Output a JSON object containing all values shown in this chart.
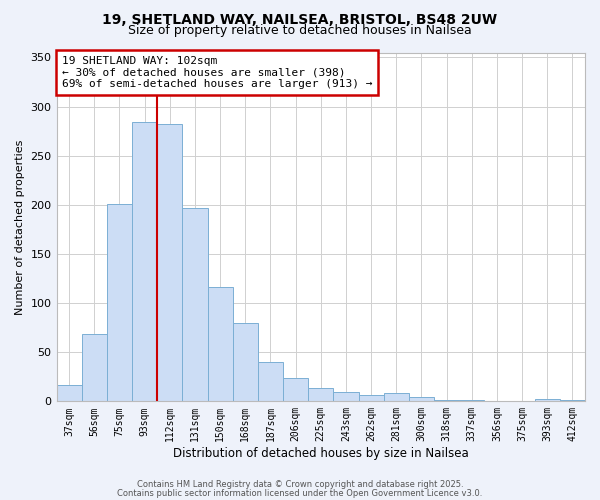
{
  "title_line1": "19, SHETLAND WAY, NAILSEA, BRISTOL, BS48 2UW",
  "title_line2": "Size of property relative to detached houses in Nailsea",
  "xlabel": "Distribution of detached houses by size in Nailsea",
  "ylabel": "Number of detached properties",
  "categories": [
    "37sqm",
    "56sqm",
    "75sqm",
    "93sqm",
    "112sqm",
    "131sqm",
    "150sqm",
    "168sqm",
    "187sqm",
    "206sqm",
    "225sqm",
    "243sqm",
    "262sqm",
    "281sqm",
    "300sqm",
    "318sqm",
    "337sqm",
    "356sqm",
    "375sqm",
    "393sqm",
    "412sqm"
  ],
  "values": [
    17,
    69,
    201,
    284,
    282,
    197,
    116,
    80,
    40,
    24,
    14,
    10,
    6,
    8,
    4,
    1,
    1,
    0,
    0,
    2,
    1
  ],
  "bar_color": "#ccddf5",
  "bar_edge_color": "#7bafd4",
  "vline_color": "#cc0000",
  "vline_x_idx": 3,
  "ylim": [
    0,
    355
  ],
  "yticks": [
    0,
    50,
    100,
    150,
    200,
    250,
    300,
    350
  ],
  "ann_title": "19 SHETLAND WAY: 102sqm",
  "ann_line2": "← 30% of detached houses are smaller (398)",
  "ann_line3": "69% of semi-detached houses are larger (913) →",
  "footer_line1": "Contains HM Land Registry data © Crown copyright and database right 2025.",
  "footer_line2": "Contains public sector information licensed under the Open Government Licence v3.0.",
  "bg_color": "#eef2fa",
  "plot_bg_color": "#ffffff",
  "grid_color": "#d0d0d0"
}
